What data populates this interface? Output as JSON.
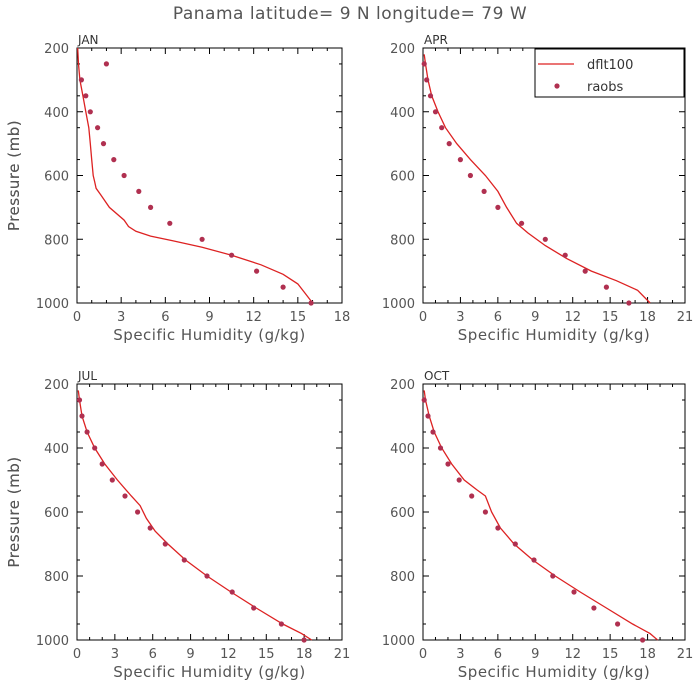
{
  "title": "Panama  latitude= 9 N longitude= 79 W",
  "colors": {
    "model": "#dd2222",
    "obs": "#b03050",
    "axis": "#000000",
    "text": "#555555"
  },
  "legend": {
    "model_label": "dflt100",
    "obs_label": "raobs",
    "placement": "top-right of APR panel"
  },
  "chart_data": [
    {
      "type": "line",
      "panel_title": "JAN",
      "xlabel": "Specific Humidity (g/kg)",
      "ylabel": "Pressure (mb)",
      "xlim": [
        0,
        18
      ],
      "xticks": [
        0,
        3,
        6,
        9,
        12,
        15,
        18
      ],
      "ylim": [
        1000,
        200
      ],
      "yticks": [
        200,
        400,
        600,
        800,
        1000
      ],
      "y_inverted": true,
      "series": [
        {
          "name": "dflt100",
          "kind": "line",
          "x": [
            0.05,
            0.1,
            0.2,
            0.4,
            0.6,
            0.8,
            0.9,
            1.0,
            1.1,
            1.2,
            1.3,
            1.6,
            2.2,
            3.2,
            3.5,
            4.0,
            5.0,
            6.5,
            8.5,
            10.5,
            12.5,
            14.0,
            15.0,
            15.5,
            16.0
          ],
          "y": [
            200,
            250,
            300,
            350,
            400,
            450,
            500,
            550,
            600,
            620,
            640,
            660,
            700,
            740,
            760,
            775,
            790,
            805,
            825,
            850,
            880,
            910,
            940,
            970,
            1000
          ]
        },
        {
          "name": "raobs",
          "kind": "points",
          "x": [
            2.0,
            0.3,
            0.6,
            0.9,
            1.4,
            1.8,
            2.5,
            3.2,
            4.2,
            5.0,
            6.3,
            8.5,
            10.5,
            12.2,
            14.0,
            15.9
          ],
          "y": [
            250,
            300,
            350,
            400,
            450,
            500,
            550,
            600,
            650,
            700,
            750,
            800,
            850,
            900,
            950,
            1000
          ]
        }
      ]
    },
    {
      "type": "line",
      "panel_title": "APR",
      "xlabel": "Specific Humidity (g/kg)",
      "ylabel": "Pressure (mb)",
      "xlim": [
        0,
        21
      ],
      "xticks": [
        0,
        3,
        6,
        9,
        12,
        15,
        18,
        21
      ],
      "ylim": [
        1000,
        200
      ],
      "yticks": [
        200,
        400,
        600,
        800,
        1000
      ],
      "y_inverted": true,
      "series": [
        {
          "name": "dflt100",
          "kind": "line",
          "x": [
            0.1,
            0.2,
            0.4,
            0.7,
            1.2,
            1.8,
            2.7,
            3.8,
            5.0,
            6.0,
            6.7,
            7.5,
            8.4,
            9.8,
            11.5,
            13.5,
            15.5,
            17.2,
            18.2
          ],
          "y": [
            220,
            250,
            300,
            350,
            400,
            450,
            500,
            550,
            600,
            650,
            700,
            750,
            780,
            820,
            860,
            900,
            930,
            960,
            1000
          ]
        },
        {
          "name": "raobs",
          "kind": "points",
          "x": [
            0.1,
            0.3,
            0.6,
            1.0,
            1.5,
            2.1,
            3.0,
            3.8,
            4.9,
            6.0,
            7.9,
            9.8,
            11.4,
            13.0,
            14.7,
            16.5
          ],
          "y": [
            250,
            300,
            350,
            400,
            450,
            500,
            550,
            600,
            650,
            700,
            750,
            800,
            850,
            900,
            950,
            1000
          ]
        }
      ]
    },
    {
      "type": "line",
      "panel_title": "JUL",
      "xlabel": "Specific Humidity (g/kg)",
      "ylabel": "Pressure (mb)",
      "xlim": [
        0,
        21
      ],
      "xticks": [
        0,
        3,
        6,
        9,
        12,
        15,
        18,
        21
      ],
      "ylim": [
        1000,
        200
      ],
      "yticks": [
        200,
        400,
        600,
        800,
        1000
      ],
      "y_inverted": true,
      "series": [
        {
          "name": "dflt100",
          "kind": "line",
          "x": [
            0.1,
            0.2,
            0.4,
            0.8,
            1.4,
            2.2,
            3.2,
            4.3,
            5.0,
            5.5,
            6.2,
            7.2,
            8.6,
            10.3,
            12.2,
            14.2,
            16.3,
            17.8,
            18.6
          ],
          "y": [
            220,
            250,
            300,
            350,
            400,
            450,
            500,
            550,
            580,
            620,
            660,
            700,
            750,
            800,
            850,
            900,
            950,
            980,
            1000
          ]
        },
        {
          "name": "raobs",
          "kind": "points",
          "x": [
            0.2,
            0.4,
            0.8,
            1.4,
            2.0,
            2.8,
            3.8,
            4.8,
            5.8,
            7.0,
            8.5,
            10.3,
            12.3,
            14.0,
            16.2,
            18.0
          ],
          "y": [
            250,
            300,
            350,
            400,
            450,
            500,
            550,
            600,
            650,
            700,
            750,
            800,
            850,
            900,
            950,
            1000
          ]
        }
      ]
    },
    {
      "type": "line",
      "panel_title": "OCT",
      "xlabel": "Specific Humidity (g/kg)",
      "ylabel": "Pressure (mb)",
      "xlim": [
        0,
        21
      ],
      "xticks": [
        0,
        3,
        6,
        9,
        12,
        15,
        18,
        21
      ],
      "ylim": [
        1000,
        200
      ],
      "yticks": [
        200,
        400,
        600,
        800,
        1000
      ],
      "y_inverted": true,
      "series": [
        {
          "name": "dflt100",
          "kind": "line",
          "x": [
            0.1,
            0.2,
            0.5,
            0.9,
            1.5,
            2.3,
            3.3,
            4.3,
            5.0,
            5.5,
            6.2,
            7.3,
            8.8,
            10.6,
            12.6,
            14.7,
            16.8,
            18.2,
            18.8
          ],
          "y": [
            220,
            250,
            300,
            350,
            400,
            450,
            500,
            530,
            550,
            600,
            650,
            700,
            750,
            800,
            850,
            900,
            950,
            980,
            1000
          ]
        },
        {
          "name": "raobs",
          "kind": "points",
          "x": [
            0.1,
            0.4,
            0.8,
            1.4,
            2.0,
            2.9,
            3.9,
            5.0,
            6.0,
            7.4,
            8.9,
            10.4,
            12.1,
            13.7,
            15.6,
            17.6
          ],
          "y": [
            250,
            300,
            350,
            400,
            450,
            500,
            550,
            600,
            650,
            700,
            750,
            800,
            850,
            900,
            950,
            1000
          ]
        }
      ]
    }
  ]
}
